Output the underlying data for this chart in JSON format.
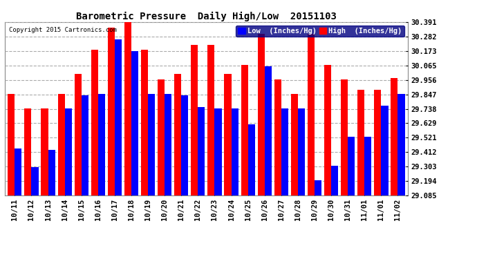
{
  "title": "Barometric Pressure  Daily High/Low  20151103",
  "copyright": "Copyright 2015 Cartronics.com",
  "legend_low": "Low  (Inches/Hg)",
  "legend_high": "High  (Inches/Hg)",
  "dates": [
    "10/11",
    "10/12",
    "10/13",
    "10/14",
    "10/15",
    "10/16",
    "10/17",
    "10/18",
    "10/19",
    "10/20",
    "10/21",
    "10/22",
    "10/23",
    "10/24",
    "10/25",
    "10/26",
    "10/27",
    "10/28",
    "10/29",
    "10/30",
    "10/31",
    "11/01",
    "11/01",
    "11/02"
  ],
  "low_values": [
    29.44,
    29.3,
    29.43,
    29.74,
    29.84,
    29.85,
    30.26,
    30.17,
    29.85,
    29.85,
    29.84,
    29.75,
    29.74,
    29.74,
    29.62,
    30.06,
    29.74,
    29.74,
    29.2,
    29.31,
    29.53,
    29.53,
    29.76,
    29.85
  ],
  "high_values": [
    29.85,
    29.74,
    29.74,
    29.85,
    30.0,
    30.18,
    30.35,
    30.39,
    30.18,
    29.96,
    30.0,
    30.22,
    30.22,
    30.0,
    30.07,
    30.3,
    29.96,
    29.85,
    30.3,
    30.07,
    29.96,
    29.88,
    29.88,
    29.97
  ],
  "yticks": [
    29.085,
    29.194,
    29.303,
    29.412,
    29.521,
    29.629,
    29.738,
    29.847,
    29.956,
    30.065,
    30.173,
    30.282,
    30.391
  ],
  "ymin": 29.085,
  "ymax": 30.391,
  "bar_color_low": "#0000FF",
  "bar_color_high": "#FF0000",
  "background_color": "#FFFFFF",
  "grid_color": "#AAAAAA",
  "title_fontsize": 10,
  "tick_fontsize": 7.5,
  "label_fontsize": 7.5
}
